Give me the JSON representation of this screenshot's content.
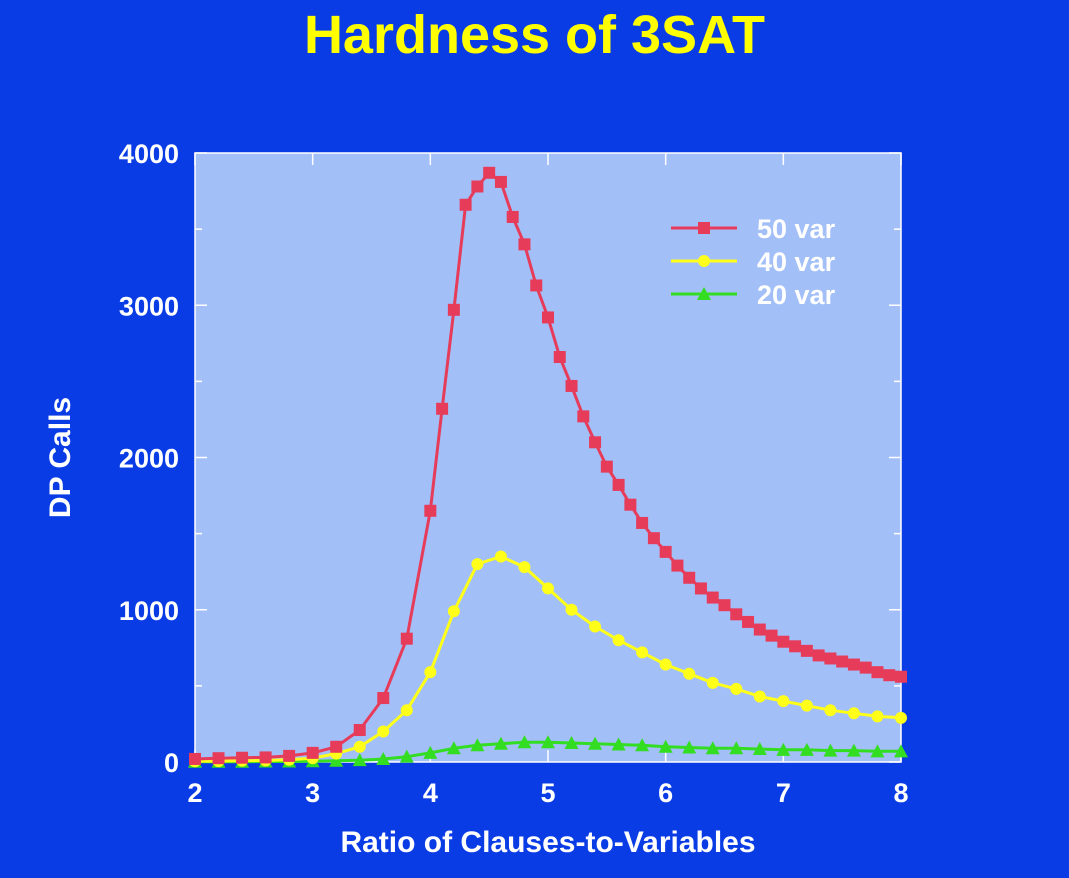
{
  "chart_data": {
    "type": "line",
    "title": "Hardness of 3SAT",
    "xlabel": "Ratio of Clauses-to-Variables",
    "ylabel": "DP Calls",
    "xlim": [
      2,
      8
    ],
    "ylim": [
      0,
      4000
    ],
    "xticks": [
      "2",
      "3",
      "4",
      "5",
      "6",
      "7",
      "8"
    ],
    "yticks": [
      "0",
      "1000",
      "2000",
      "3000",
      "4000"
    ],
    "legend_position": "top-right",
    "plot_background": "#a3bff8",
    "series": [
      {
        "name": "50 var",
        "color": "#e63c5a",
        "marker": "square",
        "x": [
          2.0,
          2.2,
          2.4,
          2.6,
          2.8,
          3.0,
          3.2,
          3.4,
          3.6,
          3.8,
          4.0,
          4.1,
          4.2,
          4.3,
          4.4,
          4.5,
          4.6,
          4.7,
          4.8,
          4.9,
          5.0,
          5.1,
          5.2,
          5.3,
          5.4,
          5.5,
          5.6,
          5.7,
          5.8,
          5.9,
          6.0,
          6.1,
          6.2,
          6.3,
          6.4,
          6.5,
          6.6,
          6.7,
          6.8,
          6.9,
          7.0,
          7.1,
          7.2,
          7.3,
          7.4,
          7.5,
          7.6,
          7.7,
          7.8,
          7.9,
          8.0
        ],
        "y": [
          20,
          25,
          28,
          30,
          40,
          60,
          100,
          210,
          420,
          810,
          1650,
          2320,
          2970,
          3660,
          3780,
          3870,
          3810,
          3580,
          3400,
          3130,
          2920,
          2660,
          2470,
          2270,
          2100,
          1940,
          1820,
          1690,
          1570,
          1470,
          1380,
          1290,
          1210,
          1140,
          1080,
          1030,
          970,
          920,
          870,
          830,
          790,
          760,
          730,
          700,
          680,
          660,
          640,
          620,
          590,
          570,
          560
        ]
      },
      {
        "name": "40 var",
        "color": "#ffff1a",
        "marker": "circle",
        "x": [
          2.0,
          2.2,
          2.4,
          2.6,
          2.8,
          3.0,
          3.2,
          3.4,
          3.6,
          3.8,
          4.0,
          4.2,
          4.4,
          4.6,
          4.8,
          5.0,
          5.2,
          5.4,
          5.6,
          5.8,
          6.0,
          6.2,
          6.4,
          6.6,
          6.8,
          7.0,
          7.2,
          7.4,
          7.6,
          7.8,
          8.0
        ],
        "y": [
          5,
          6,
          8,
          10,
          15,
          25,
          55,
          100,
          200,
          340,
          590,
          990,
          1300,
          1350,
          1280,
          1140,
          1000,
          890,
          800,
          720,
          640,
          580,
          520,
          480,
          430,
          400,
          370,
          340,
          320,
          300,
          290
        ]
      },
      {
        "name": "20 var",
        "color": "#33dd22",
        "marker": "triangle",
        "x": [
          2.0,
          2.2,
          2.4,
          2.6,
          2.8,
          3.0,
          3.2,
          3.4,
          3.6,
          3.8,
          4.0,
          4.2,
          4.4,
          4.6,
          4.8,
          5.0,
          5.2,
          5.4,
          5.6,
          5.8,
          6.0,
          6.2,
          6.4,
          6.6,
          6.8,
          7.0,
          7.2,
          7.4,
          7.6,
          7.8,
          8.0
        ],
        "y": [
          2,
          2,
          2,
          3,
          3,
          5,
          8,
          12,
          20,
          35,
          60,
          90,
          110,
          120,
          130,
          130,
          125,
          120,
          115,
          110,
          100,
          95,
          90,
          90,
          85,
          80,
          80,
          75,
          75,
          70,
          70
        ]
      }
    ]
  }
}
